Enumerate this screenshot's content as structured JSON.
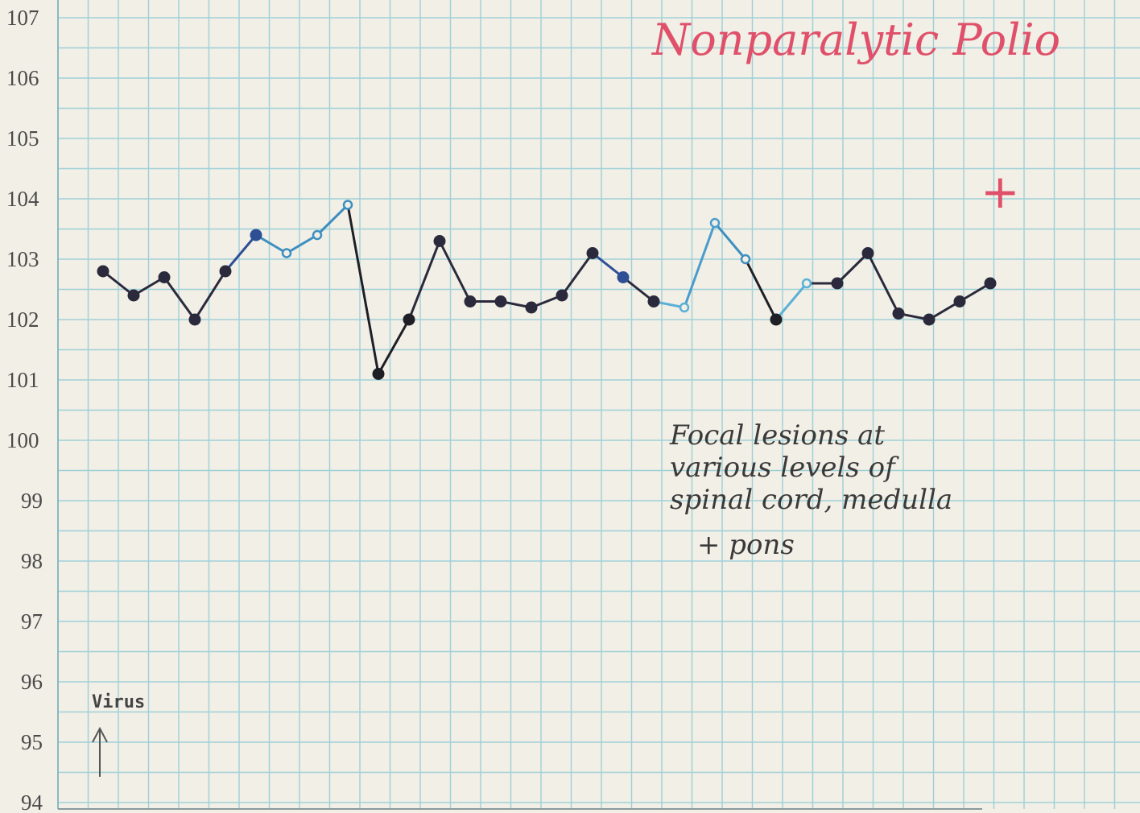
{
  "chart_data": {
    "type": "line",
    "title": "Nonparalytic Polio",
    "xlabel": "",
    "ylabel": "",
    "ylim": [
      94,
      107
    ],
    "yticks": [
      107,
      106,
      105,
      104,
      103,
      102,
      101,
      100,
      99,
      98,
      97,
      96,
      95,
      94
    ],
    "grid": true,
    "x": [
      0,
      1,
      2,
      3,
      4,
      5,
      6,
      7,
      8,
      9,
      10,
      11,
      12,
      13,
      14,
      15,
      16,
      17,
      18,
      19,
      20,
      21,
      22,
      23,
      24,
      25,
      26,
      27,
      28,
      29
    ],
    "series": [
      {
        "values": [
          102.8,
          102.4,
          102.7,
          102.0,
          102.8,
          103.4,
          103.1,
          103.4,
          103.9,
          101.1,
          102.0,
          103.3,
          102.3,
          102.3,
          102.2,
          102.4,
          103.1,
          102.7,
          102.3,
          102.2,
          103.6,
          103.0,
          102.0,
          102.6,
          102.6,
          103.1,
          102.1,
          102.0,
          102.3,
          102.6
        ],
        "point_colors": [
          "#2a2a3c",
          "#2a2a3c",
          "#2a2a3c",
          "#2a2a3c",
          "#2a2a3c",
          "#2f4f95",
          "#3d8fc0",
          "#3d8fc0",
          "#3d8fc0",
          "#1f1f26",
          "#1f1f26",
          "#2a2a3c",
          "#2a2a3c",
          "#2a2a3c",
          "#2a2a3c",
          "#2a2a3c",
          "#2a2a3c",
          "#2f4f95",
          "#2a2a3c",
          "#5ab0d6",
          "#4a9ccc",
          "#3d8fc0",
          "#1f1f26",
          "#5ab0d6",
          "#2a2a3c",
          "#2a2a3c",
          "#2a2a3c",
          "#2a2a3c",
          "#2a2a3c",
          "#2a2a3c"
        ]
      }
    ],
    "annotations": [
      {
        "label": "marker_virus",
        "text": "Virus"
      },
      {
        "label": "marker_plus",
        "text": "+"
      }
    ],
    "note_lines": [
      "Focal lesions at",
      "various levels of",
      "spinal cord, medulla",
      "+ pons"
    ]
  },
  "colors": {
    "paper": "#f1efe6",
    "grid": "#9fd0d8",
    "title": "#e0506a",
    "ink": "#2a2a3c"
  }
}
